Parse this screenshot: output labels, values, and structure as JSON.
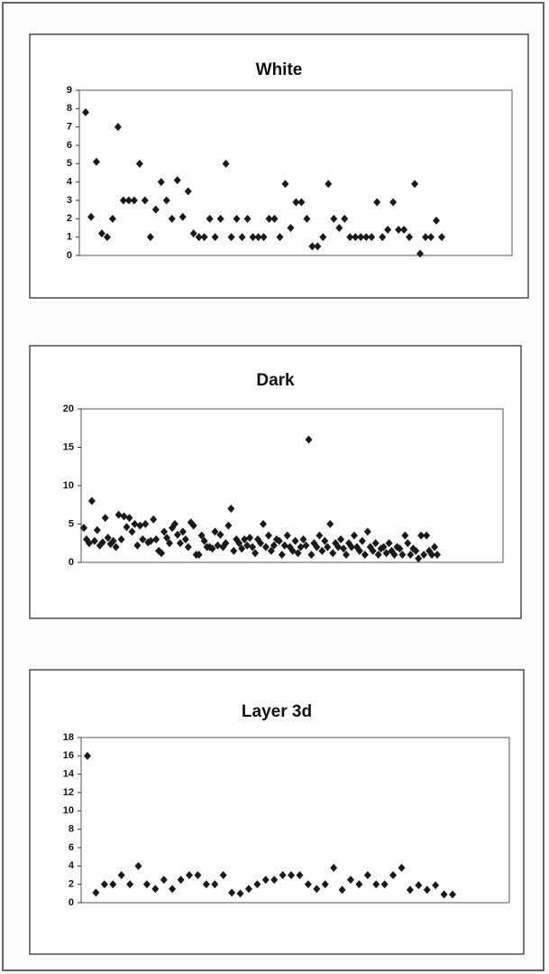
{
  "chart_data": [
    {
      "type": "scatter",
      "title": "White",
      "color": "#1a1a1a",
      "values": [
        7.8,
        2.1,
        5.1,
        1.2,
        1.0,
        2.0,
        7.0,
        3.0,
        3.0,
        3.0,
        5.0,
        3.0,
        1.0,
        2.5,
        4.0,
        3.0,
        2.0,
        4.1,
        2.1,
        3.5,
        1.2,
        1.0,
        1.0,
        2.0,
        1.0,
        2.0,
        5.0,
        1.0,
        2.0,
        1.0,
        2.0,
        1.0,
        1.0,
        1.0,
        2.0,
        2.0,
        1.0,
        3.9,
        1.5,
        2.9,
        2.9,
        2.0,
        0.5,
        0.5,
        1.0,
        3.9,
        2.0,
        1.5,
        2.0,
        1.0,
        1.0,
        1.0,
        1.0,
        1.0,
        2.9,
        1.0,
        1.4,
        2.9,
        1.4,
        1.4,
        1.0,
        3.9,
        0.1,
        1.0,
        1.0,
        1.9,
        1.0
      ],
      "ylim": [
        0,
        9
      ],
      "yticks": [
        0,
        1,
        2,
        3,
        4,
        5,
        6,
        7,
        8,
        9
      ]
    },
    {
      "type": "scatter",
      "title": "Dark",
      "color": "#1a1a1a",
      "values": [
        4.5,
        3,
        2.5,
        8,
        2.8,
        4.2,
        2.2,
        2.6,
        5.8,
        3.2,
        2.4,
        2.8,
        2,
        6.2,
        3,
        6,
        4.6,
        5.8,
        4,
        5,
        2.2,
        4.8,
        3,
        5,
        2.6,
        2.8,
        5.6,
        3,
        1.5,
        1.2,
        4,
        3.2,
        2.5,
        4.5,
        5,
        3.6,
        2.5,
        4,
        3,
        2,
        5.2,
        4.8,
        1,
        1,
        3.5,
        2.8,
        2,
        2,
        1.8,
        4,
        2.2,
        3.6,
        2,
        2.5,
        4.8,
        7,
        1.5,
        3,
        2.5,
        1.8,
        3,
        2.2,
        3.2,
        2,
        1.2,
        3,
        2.5,
        5,
        2,
        3.5,
        1.5,
        2.2,
        3,
        2.8,
        1,
        2.2,
        3.5,
        2,
        1.5,
        2.8,
        1.2,
        2,
        3,
        2.2,
        16,
        1,
        2.5,
        2,
        3.5,
        1.5,
        2.8,
        2,
        5,
        1.2,
        2.5,
        2,
        3,
        1.8,
        1,
        2.5,
        2,
        3.5,
        2,
        1.5,
        2.8,
        1,
        4,
        2,
        1.5,
        2.5,
        1,
        1.8,
        2,
        1.2,
        2.5,
        1.5,
        1,
        2,
        1.8,
        1,
        3.5,
        2.5,
        1,
        1.8,
        1.5,
        0.5,
        3.5,
        1,
        3.5,
        1.5,
        1,
        2,
        1
      ],
      "ylim": [
        0,
        20
      ],
      "yticks": [
        0,
        5,
        10,
        15,
        20
      ]
    },
    {
      "type": "scatter",
      "title": "Layer 3d",
      "color": "#1a1a1a",
      "values": [
        16,
        1.1,
        2.0,
        2.0,
        3.0,
        2.0,
        4.0,
        2.0,
        1.5,
        2.5,
        1.5,
        2.5,
        3.0,
        3.0,
        2.0,
        2.0,
        3.0,
        1.1,
        1.0,
        1.5,
        2.0,
        2.5,
        2.5,
        3.0,
        3.0,
        3.0,
        2.0,
        1.5,
        2.0,
        3.8,
        1.4,
        2.5,
        2.0,
        3.0,
        2.0,
        2.0,
        3.0,
        3.8,
        1.4,
        1.9,
        1.4,
        1.9,
        0.9,
        0.9
      ],
      "ylim": [
        0,
        18
      ],
      "yticks": [
        0,
        2,
        4,
        6,
        8,
        10,
        12,
        14,
        16,
        18
      ]
    }
  ]
}
